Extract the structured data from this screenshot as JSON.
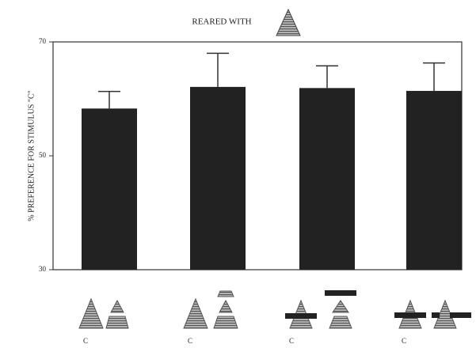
{
  "chart_data": {
    "type": "bar",
    "title": "REARED WITH",
    "y_label": "% PREFERENCE FOR STIMULUS \"C\"",
    "categories": [
      "C",
      "C",
      "C",
      "C"
    ],
    "values": [
      58.3,
      62.1,
      61.9,
      61.4
    ],
    "errors": [
      3.0,
      5.9,
      3.9,
      4.9
    ],
    "color": "#222222",
    "ylim": [
      30,
      70
    ],
    "yticks": [
      30,
      50,
      70
    ]
  }
}
